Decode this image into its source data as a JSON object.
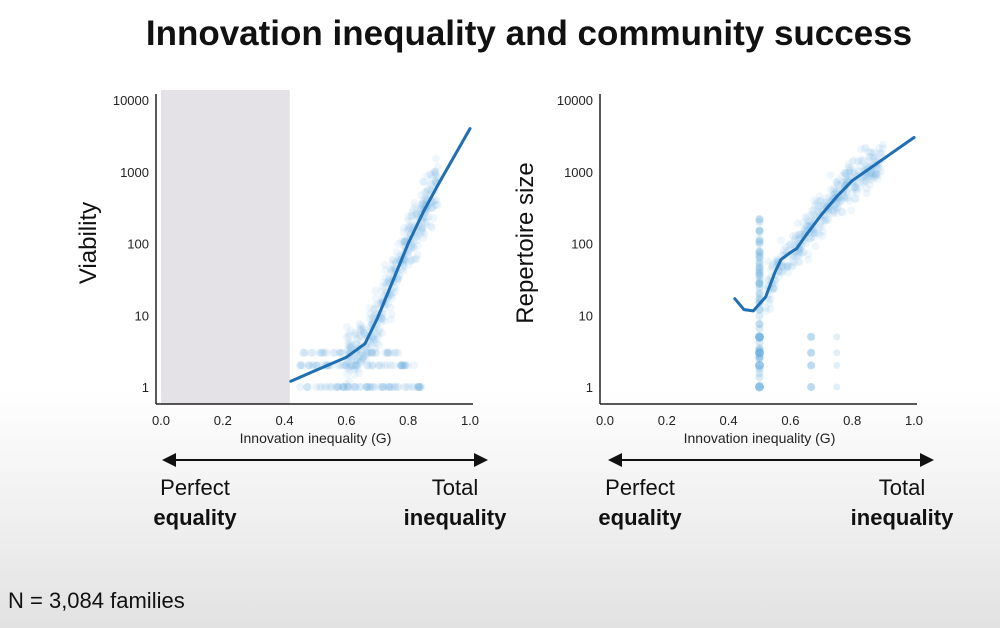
{
  "title": "Innovation inequality and community success",
  "footnote": "N = 3,084 families",
  "colors": {
    "curve": "#1f6fb2",
    "points": "#6aaee0",
    "shade": "#e4e2e6",
    "text": "#111111"
  },
  "scale_labels": {
    "left": {
      "line1": "Perfect",
      "line2": "equality"
    },
    "right": {
      "line1": "Total",
      "line2": "inequality"
    }
  },
  "chart_data": [
    {
      "type": "scatter",
      "title": "",
      "xlabel": "Innovation inequality (G)",
      "ylabel": "Viability",
      "xlim": [
        0.0,
        1.0
      ],
      "ylim": [
        1,
        10000
      ],
      "yscale": "log",
      "xticks": [
        "0.0",
        "0.2",
        "0.4",
        "0.6",
        "0.8",
        "1.0"
      ],
      "yticks": [
        "1",
        "10",
        "100",
        "1000",
        "10000"
      ],
      "shaded_region": {
        "x": [
          0.0,
          0.42
        ]
      },
      "fit_curve": [
        {
          "x": 0.42,
          "y": 1.2
        },
        {
          "x": 0.5,
          "y": 1.7
        },
        {
          "x": 0.6,
          "y": 2.6
        },
        {
          "x": 0.66,
          "y": 4
        },
        {
          "x": 0.7,
          "y": 9
        },
        {
          "x": 0.75,
          "y": 30
        },
        {
          "x": 0.8,
          "y": 100
        },
        {
          "x": 0.85,
          "y": 280
        },
        {
          "x": 0.9,
          "y": 700
        },
        {
          "x": 1.0,
          "y": 4000
        }
      ]
    },
    {
      "type": "scatter",
      "title": "",
      "xlabel": "Innovation inequality (G)",
      "ylabel": "Repertoire size",
      "xlim": [
        0.0,
        1.0
      ],
      "ylim": [
        1,
        10000
      ],
      "yscale": "log",
      "xticks": [
        "0.0",
        "0.2",
        "0.4",
        "0.6",
        "0.8",
        "1.0"
      ],
      "yticks": [
        "1",
        "10",
        "100",
        "1000",
        "10000"
      ],
      "fit_curve": [
        {
          "x": 0.42,
          "y": 17
        },
        {
          "x": 0.45,
          "y": 12
        },
        {
          "x": 0.48,
          "y": 11.5
        },
        {
          "x": 0.52,
          "y": 18
        },
        {
          "x": 0.55,
          "y": 40
        },
        {
          "x": 0.57,
          "y": 60
        },
        {
          "x": 0.6,
          "y": 75
        },
        {
          "x": 0.62,
          "y": 85
        },
        {
          "x": 0.65,
          "y": 130
        },
        {
          "x": 0.7,
          "y": 250
        },
        {
          "x": 0.75,
          "y": 450
        },
        {
          "x": 0.8,
          "y": 750
        },
        {
          "x": 0.9,
          "y": 1500
        },
        {
          "x": 1.0,
          "y": 3000
        }
      ]
    }
  ]
}
